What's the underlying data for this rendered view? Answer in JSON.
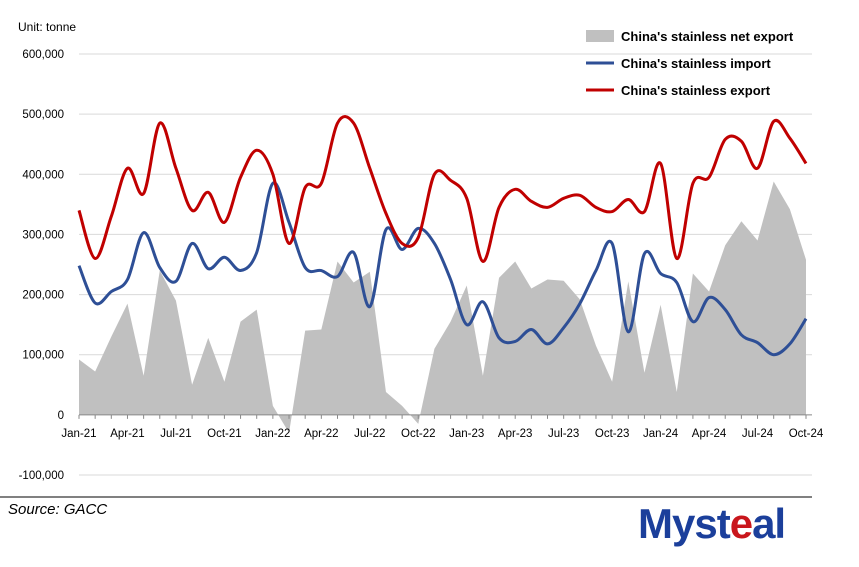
{
  "unit_label": "Unit: tonne",
  "source": "Source:  GACC",
  "logo": {
    "part1": "Myst",
    "part2": "e",
    "part3": "al"
  },
  "colors": {
    "net_export": "#c0c0c0",
    "import": "#2e4f96",
    "export": "#c00000"
  },
  "chart_data": {
    "type": "line",
    "unit": "tonne",
    "ylim": [
      -100000,
      600000
    ],
    "yticks": [
      -100000,
      0,
      100000,
      200000,
      300000,
      400000,
      500000,
      600000
    ],
    "ytick_labels": [
      "-100,000",
      "0",
      "100,000",
      "200,000",
      "300,000",
      "400,000",
      "500,000",
      "600,000"
    ],
    "grid": "horizontal",
    "legend_position": "top-right",
    "x_tick_labels": [
      "Jan-21",
      "Apr-21",
      "Jul-21",
      "Oct-21",
      "Jan-22",
      "Apr-22",
      "Jul-22",
      "Oct-22",
      "Jan-23",
      "Apr-23",
      "Jul-23",
      "Oct-23",
      "Jan-24",
      "Apr-24",
      "Jul-24",
      "Oct-24"
    ],
    "x": [
      "Jan-21",
      "Feb-21",
      "Mar-21",
      "Apr-21",
      "May-21",
      "Jun-21",
      "Jul-21",
      "Aug-21",
      "Sep-21",
      "Oct-21",
      "Nov-21",
      "Dec-21",
      "Jan-22",
      "Feb-22",
      "Mar-22",
      "Apr-22",
      "May-22",
      "Jun-22",
      "Jul-22",
      "Aug-22",
      "Sep-22",
      "Oct-22",
      "Nov-22",
      "Dec-22",
      "Jan-23",
      "Feb-23",
      "Mar-23",
      "Apr-23",
      "May-23",
      "Jun-23",
      "Jul-23",
      "Aug-23",
      "Sep-23",
      "Oct-23",
      "Nov-23",
      "Dec-23",
      "Jan-24",
      "Feb-24",
      "Mar-24",
      "Apr-24",
      "May-24",
      "Jun-24",
      "Jul-24",
      "Aug-24",
      "Sep-24",
      "Oct-24"
    ],
    "series": [
      {
        "name": "China's stainless net export",
        "kind": "area",
        "values": [
          92000,
          72000,
          130000,
          185000,
          65000,
          240000,
          190000,
          50000,
          128000,
          55000,
          155000,
          175000,
          15000,
          -30000,
          140000,
          142000,
          255000,
          220000,
          238000,
          38000,
          15000,
          -15000,
          110000,
          155000,
          215000,
          65000,
          228000,
          255000,
          210000,
          225000,
          223000,
          192000,
          115000,
          55000,
          222000,
          70000,
          183000,
          38000,
          235000,
          205000,
          282000,
          322000,
          290000,
          388000,
          342000,
          258000
        ]
      },
      {
        "name": "China's stainless import",
        "kind": "line",
        "values": [
          248000,
          186000,
          205000,
          225000,
          303000,
          245000,
          222000,
          285000,
          243000,
          262000,
          240000,
          270000,
          385000,
          320000,
          245000,
          240000,
          230000,
          270000,
          180000,
          308000,
          275000,
          310000,
          285000,
          225000,
          150000,
          188000,
          128000,
          122000,
          142000,
          118000,
          145000,
          185000,
          240000,
          285000,
          138000,
          268000,
          235000,
          220000,
          155000,
          195000,
          175000,
          133000,
          120000,
          100000,
          118000,
          160000
        ]
      },
      {
        "name": "China's stainless export",
        "kind": "line",
        "values": [
          340000,
          260000,
          330000,
          410000,
          368000,
          485000,
          410000,
          340000,
          370000,
          320000,
          395000,
          440000,
          400000,
          285000,
          378000,
          385000,
          485000,
          485000,
          410000,
          335000,
          285000,
          295000,
          400000,
          390000,
          360000,
          255000,
          345000,
          375000,
          355000,
          345000,
          360000,
          365000,
          345000,
          338000,
          358000,
          338000,
          418000,
          260000,
          385000,
          395000,
          458000,
          455000,
          410000,
          488000,
          460000,
          418000
        ]
      }
    ]
  }
}
